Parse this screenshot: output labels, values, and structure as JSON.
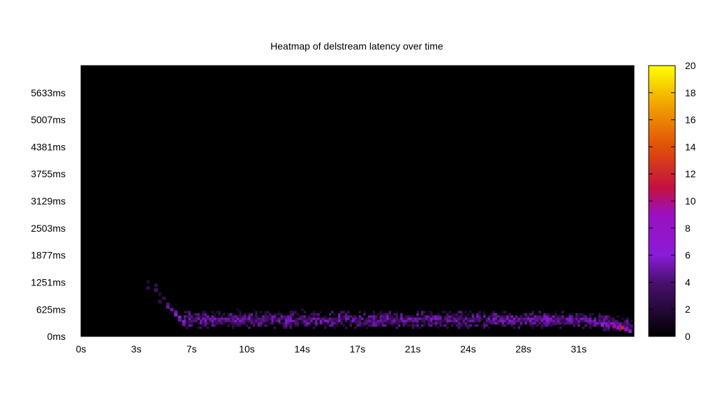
{
  "chart_data": {
    "type": "heatmap",
    "title": "Heatmap of delstream latency over time",
    "xlabel": "",
    "ylabel": "",
    "x_unit": "s",
    "y_unit": "ms",
    "xlim": [
      0,
      35
    ],
    "ylim": [
      0,
      6259
    ],
    "x_ticks": [
      {
        "value": 0,
        "label": "0s"
      },
      {
        "value": 3.5,
        "label": "3s"
      },
      {
        "value": 7,
        "label": "7s"
      },
      {
        "value": 10.5,
        "label": "10s"
      },
      {
        "value": 14,
        "label": "14s"
      },
      {
        "value": 17.5,
        "label": "17s"
      },
      {
        "value": 21,
        "label": "21s"
      },
      {
        "value": 24.5,
        "label": "24s"
      },
      {
        "value": 28,
        "label": "28s"
      },
      {
        "value": 31.5,
        "label": "31s"
      }
    ],
    "y_ticks": [
      {
        "value": 0,
        "label": "0ms"
      },
      {
        "value": 625,
        "label": "625ms"
      },
      {
        "value": 1251,
        "label": "1251ms"
      },
      {
        "value": 1877,
        "label": "1877ms"
      },
      {
        "value": 2503,
        "label": "2503ms"
      },
      {
        "value": 3129,
        "label": "3129ms"
      },
      {
        "value": 3755,
        "label": "3755ms"
      },
      {
        "value": 4381,
        "label": "4381ms"
      },
      {
        "value": 5007,
        "label": "5007ms"
      },
      {
        "value": 5633,
        "label": "5633ms"
      }
    ],
    "colorbar": {
      "min": 0,
      "max": 20,
      "ticks": [
        0,
        2,
        4,
        6,
        8,
        10,
        12,
        14,
        16,
        18,
        20
      ],
      "palette": "black-purple-red-yellow"
    },
    "background_color": "#000000",
    "grid": false,
    "legend": "none",
    "cells": [
      {
        "x": 4.25,
        "y": 1260,
        "v": 2
      },
      {
        "x": 4.75,
        "y": 1180,
        "v": 3
      },
      {
        "x": 4.25,
        "y": 1120,
        "v": 3
      },
      {
        "x": 4.75,
        "y": 1070,
        "v": 4
      },
      {
        "x": 5.0,
        "y": 980,
        "v": 2
      },
      {
        "x": 5.25,
        "y": 880,
        "v": 3
      },
      {
        "x": 5.0,
        "y": 800,
        "v": 3
      },
      {
        "x": 5.5,
        "y": 740,
        "v": 4
      },
      {
        "x": 5.5,
        "y": 680,
        "v": 5
      },
      {
        "x": 5.75,
        "y": 620,
        "v": 5
      },
      {
        "x": 6.0,
        "y": 560,
        "v": 5
      },
      {
        "x": 6.0,
        "y": 500,
        "v": 6
      },
      {
        "x": 6.25,
        "y": 440,
        "v": 6
      },
      {
        "x": 6.25,
        "y": 380,
        "v": 5
      },
      {
        "x": 6.5,
        "y": 340,
        "v": 6
      },
      {
        "x": 6.5,
        "y": 280,
        "v": 5
      },
      {
        "x": 10.0,
        "y": 300,
        "v": 4
      },
      {
        "x": 14.0,
        "y": 420,
        "v": 4
      },
      {
        "x": 18.0,
        "y": 300,
        "v": 4
      },
      {
        "x": 22.0,
        "y": 380,
        "v": 4
      },
      {
        "x": 26.0,
        "y": 320,
        "v": 4
      },
      {
        "x": 30.0,
        "y": 300,
        "v": 4
      },
      {
        "x": 33.0,
        "y": 260,
        "v": 6
      },
      {
        "x": 33.75,
        "y": 240,
        "v": 10
      },
      {
        "x": 34.0,
        "y": 200,
        "v": 8
      },
      {
        "x": 34.25,
        "y": 200,
        "v": 12
      },
      {
        "x": 34.5,
        "y": 160,
        "v": 9
      },
      {
        "x": 34.75,
        "y": 120,
        "v": 7
      }
    ]
  }
}
